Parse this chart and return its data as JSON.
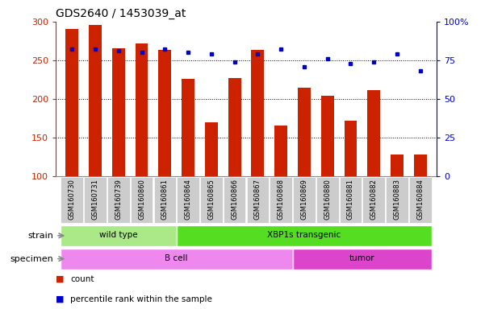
{
  "title": "GDS2640 / 1453039_at",
  "samples": [
    "GSM160730",
    "GSM160731",
    "GSM160739",
    "GSM160860",
    "GSM160861",
    "GSM160864",
    "GSM160865",
    "GSM160866",
    "GSM160867",
    "GSM160868",
    "GSM160869",
    "GSM160880",
    "GSM160881",
    "GSM160882",
    "GSM160883",
    "GSM160884"
  ],
  "counts": [
    290,
    296,
    265,
    272,
    263,
    226,
    170,
    227,
    263,
    165,
    214,
    204,
    172,
    211,
    128,
    128
  ],
  "percentiles": [
    82,
    82,
    81,
    80,
    82,
    80,
    79,
    74,
    79,
    82,
    71,
    76,
    73,
    74,
    79,
    68
  ],
  "bar_color": "#cc2200",
  "dot_color": "#0000cc",
  "ylim_left": [
    100,
    300
  ],
  "ylim_right": [
    0,
    100
  ],
  "yticks_left": [
    100,
    150,
    200,
    250,
    300
  ],
  "yticks_right": [
    0,
    25,
    50,
    75,
    100
  ],
  "ytick_labels_right": [
    "0",
    "25",
    "50",
    "75",
    "100%"
  ],
  "grid_values": [
    150,
    200,
    250
  ],
  "strain_groups": [
    {
      "label": "wild type",
      "start": 0,
      "end": 4,
      "color": "#aae888"
    },
    {
      "label": "XBP1s transgenic",
      "start": 5,
      "end": 15,
      "color": "#55dd22"
    }
  ],
  "specimen_groups": [
    {
      "label": "B cell",
      "start": 0,
      "end": 9,
      "color": "#ee88ee"
    },
    {
      "label": "tumor",
      "start": 10,
      "end": 15,
      "color": "#dd44cc"
    }
  ],
  "strain_label": "strain",
  "specimen_label": "specimen",
  "legend_count_label": "count",
  "legend_pct_label": "percentile rank within the sample",
  "bar_width": 0.55,
  "bg_color": "#ffffff",
  "tick_area_color": "#cccccc"
}
